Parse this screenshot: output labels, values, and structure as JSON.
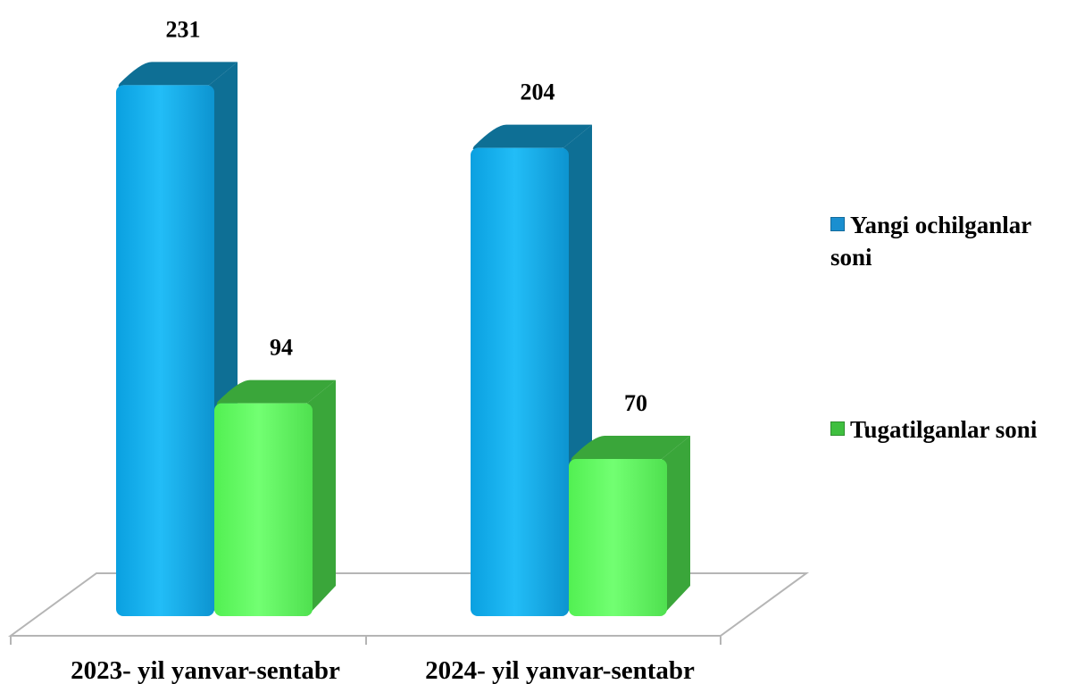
{
  "chart_data": {
    "type": "bar",
    "categories": [
      "2023- yil yanvar-sentabr",
      "2024- yil yanvar-sentabr"
    ],
    "series": [
      {
        "name": "Yangi ochilganlar soni",
        "values": [
          231,
          204
        ],
        "color": "#1ab2f0",
        "side_color": "#0e6f95"
      },
      {
        "name": "Tugatilganlar soni",
        "values": [
          94,
          70
        ],
        "color": "#66ff66",
        "side_color": "#3aa63a"
      }
    ],
    "data_labels": [
      "231",
      "94",
      "204",
      "70"
    ],
    "ylim": [
      0,
      250
    ],
    "grid": false,
    "legend_position": "right"
  }
}
